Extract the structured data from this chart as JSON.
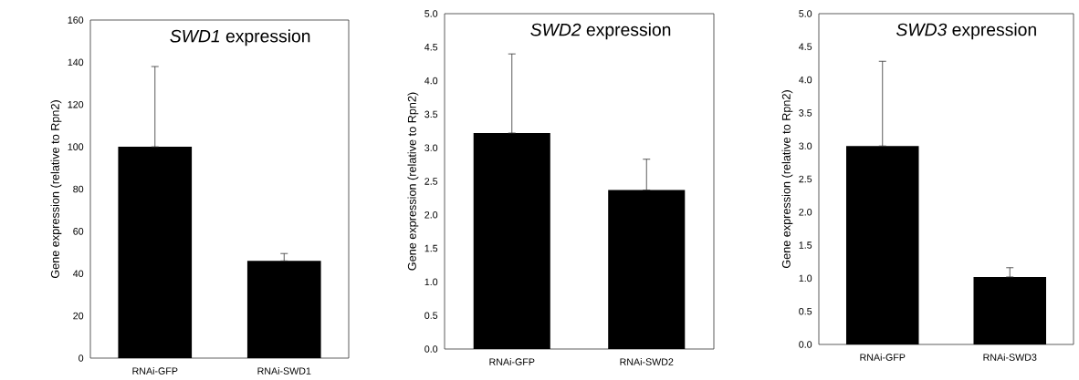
{
  "chart_data": [
    {
      "type": "bar",
      "title": "*SWD1* expression",
      "ylabel": "Gene expression (relative to Rpn2)",
      "categories": [
        "RNAi-GFP",
        "RNAi-SWD1"
      ],
      "values": [
        100,
        46
      ],
      "errors": [
        [
          100,
          138
        ],
        [
          46,
          49.5
        ]
      ],
      "color": "#000000",
      "ylim": [
        0,
        160
      ],
      "yticks": [
        0,
        20,
        40,
        60,
        80,
        100,
        120,
        140,
        160
      ]
    },
    {
      "type": "bar",
      "title": "*SWD2* expression",
      "ylabel": "Gene expression (relative to Rpn2)",
      "categories": [
        "RNAi-GFP",
        "RNAi-SWD2"
      ],
      "values": [
        3.22,
        2.37
      ],
      "errors": [
        [
          3.22,
          4.4
        ],
        [
          2.37,
          2.83
        ]
      ],
      "color": "#000000",
      "ylim": [
        0,
        5
      ],
      "yticks": [
        {
          "value": 0,
          "label": "0.0"
        },
        {
          "value": 0.5,
          "label": "0.5"
        },
        {
          "value": 1,
          "label": "1.0"
        },
        {
          "value": 1.5,
          "label": "1.5"
        },
        {
          "value": 2,
          "label": "2.0"
        },
        {
          "value": 2.5,
          "label": "2.5"
        },
        {
          "value": 3,
          "label": "3.0"
        },
        {
          "value": 3.5,
          "label": "3.5"
        },
        {
          "value": 4,
          "label": "4.0"
        },
        {
          "value": 4.5,
          "label": "4.5"
        },
        {
          "value": 5,
          "label": "5.0"
        }
      ]
    },
    {
      "type": "bar",
      "title": "*SWD3* expression",
      "ylabel": "Gene expression (relative to Rpn2)",
      "categories": [
        "RNAi-GFP",
        "RNAi-SWD3"
      ],
      "values": [
        3.0,
        1.02
      ],
      "errors": [
        [
          3.0,
          4.28
        ],
        [
          1.02,
          1.16
        ]
      ],
      "color": "#000000",
      "ylim": [
        0,
        5
      ],
      "yticks": [
        {
          "value": 0,
          "label": "0.0"
        },
        {
          "value": 0.5,
          "label": "0.5"
        },
        {
          "value": 1,
          "label": "1.0"
        },
        {
          "value": 1.5,
          "label": "1.5"
        },
        {
          "value": 2,
          "label": "2.0"
        },
        {
          "value": 2.5,
          "label": "2.5"
        },
        {
          "value": 3,
          "label": "3.0"
        },
        {
          "value": 3.5,
          "label": "3.5"
        },
        {
          "value": 4,
          "label": "4.0"
        },
        {
          "value": 4.5,
          "label": "4.5"
        },
        {
          "value": 5,
          "label": "5.0"
        }
      ]
    }
  ]
}
